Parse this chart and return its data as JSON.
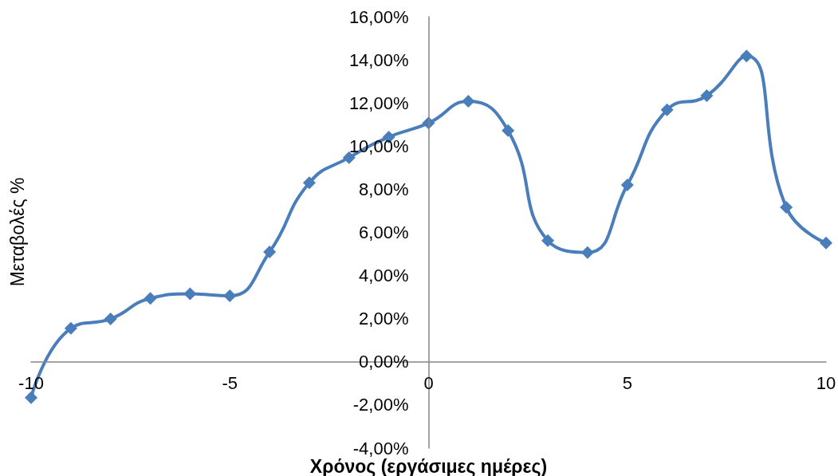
{
  "chart_data": {
    "type": "line",
    "xlabel": "Χρόνος (εργάσιμες ημέρες)",
    "ylabel": "Μεταβολές %",
    "x": [
      -10,
      -9,
      -8,
      -7,
      -6,
      -5,
      -4,
      -3,
      -2,
      -1,
      0,
      1,
      2,
      3,
      4,
      5,
      6,
      7,
      8,
      9,
      10
    ],
    "series": [
      {
        "color": "#4a7ebb",
        "values": [
          -1.66,
          1.55,
          1.99,
          2.94,
          3.15,
          3.06,
          5.09,
          8.3,
          9.47,
          10.42,
          11.07,
          12.08,
          10.72,
          5.62,
          5.07,
          8.2,
          11.68,
          12.34,
          14.18,
          7.16,
          5.51
        ]
      }
    ],
    "xlim": [
      -10,
      10
    ],
    "xticks": [
      -10,
      -5,
      0,
      5,
      10
    ],
    "ylim": [
      -4,
      16
    ],
    "yticks": [
      {
        "value": -4,
        "label": "-4,00%"
      },
      {
        "value": -2,
        "label": "-2,00%"
      },
      {
        "value": 0,
        "label": "0,00%"
      },
      {
        "value": 2,
        "label": "2,00%"
      },
      {
        "value": 4,
        "label": "4,00%"
      },
      {
        "value": 6,
        "label": "6,00%"
      },
      {
        "value": 8,
        "label": "8,00%"
      },
      {
        "value": 10,
        "label": "10,00%"
      },
      {
        "value": 12,
        "label": "12,00%"
      },
      {
        "value": 14,
        "label": "14,00%"
      },
      {
        "value": 16,
        "label": "16,00%"
      }
    ],
    "grid": false,
    "marker": "diamond",
    "line_style": "solid"
  }
}
